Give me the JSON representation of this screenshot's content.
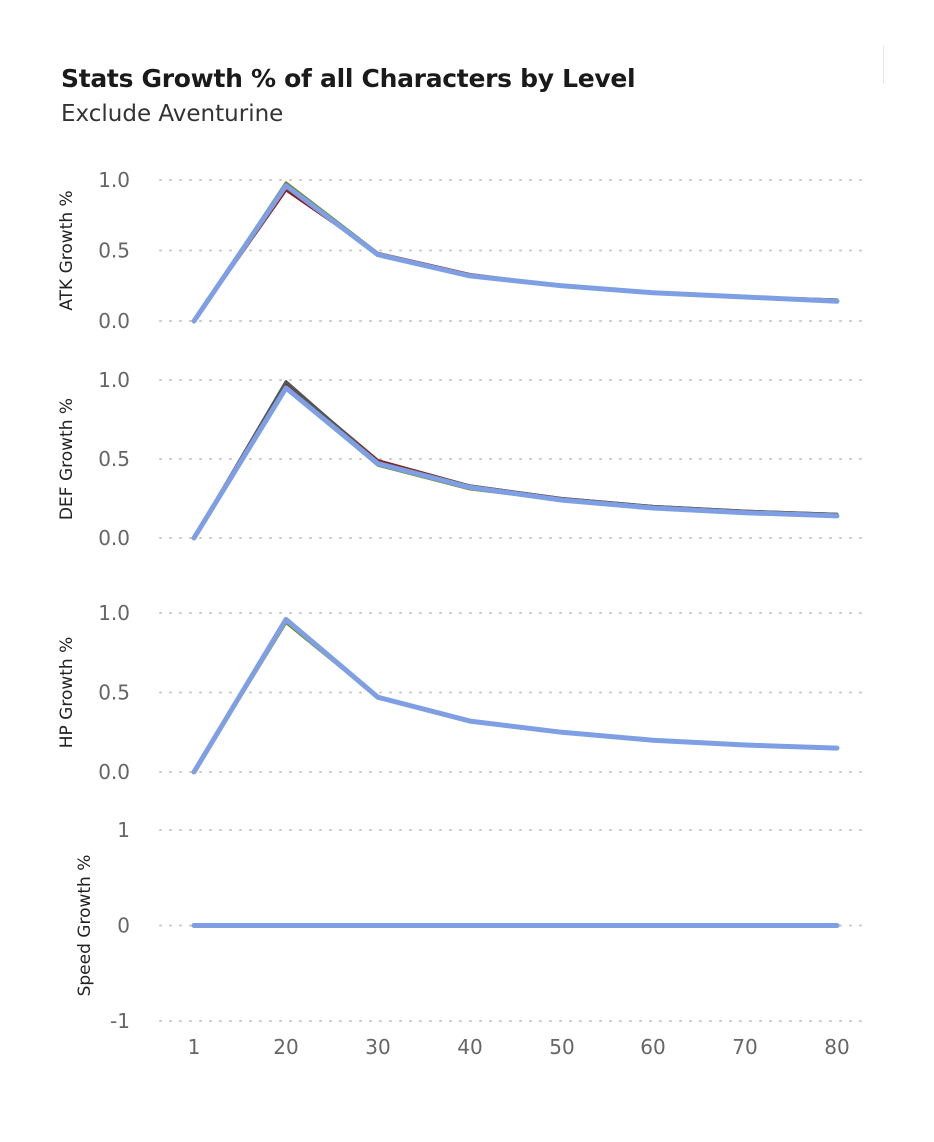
{
  "title": "Stats Growth % of all Characters by Level",
  "subtitle": "Exclude Aventurine",
  "chart_data": {
    "type": "line",
    "x": [
      1,
      20,
      30,
      40,
      50,
      60,
      70,
      80
    ],
    "x_tick_labels": [
      "1",
      "20",
      "30",
      "40",
      "50",
      "60",
      "70",
      "80"
    ],
    "grid": true,
    "panels": [
      {
        "ylabel": "ATK Growth %",
        "ylim": [
          0,
          1
        ],
        "y_ticks": [
          0,
          0.5,
          1
        ],
        "y_tick_labels": [
          "0.0",
          "0.5",
          "1.0"
        ],
        "series": [
          {
            "color": "#8b2020",
            "values": [
              0.0,
              0.93,
              0.48,
              0.33,
              0.25,
              0.2,
              0.17,
              0.15
            ]
          },
          {
            "color": "#6b8e23",
            "values": [
              0.0,
              0.98,
              0.48,
              0.32,
              0.25,
              0.2,
              0.17,
              0.15
            ]
          },
          {
            "color": "#555555",
            "values": [
              0.0,
              0.97,
              0.47,
              0.32,
              0.25,
              0.2,
              0.17,
              0.14
            ]
          },
          {
            "color": "#7e9fe3",
            "values": [
              0.0,
              0.96,
              0.47,
              0.32,
              0.25,
              0.2,
              0.17,
              0.14
            ]
          }
        ]
      },
      {
        "ylabel": "DEF Growth %",
        "ylim": [
          0,
          1
        ],
        "y_ticks": [
          0,
          0.5,
          1
        ],
        "y_tick_labels": [
          "0.0",
          "0.5",
          "1.0"
        ],
        "series": [
          {
            "color": "#8b2020",
            "values": [
              0.0,
              0.98,
              0.49,
              0.33,
              0.25,
              0.2,
              0.17,
              0.15
            ]
          },
          {
            "color": "#6b8e23",
            "values": [
              0.0,
              0.95,
              0.46,
              0.31,
              0.24,
              0.19,
              0.16,
              0.14
            ]
          },
          {
            "color": "#555555",
            "values": [
              0.0,
              0.99,
              0.48,
              0.33,
              0.25,
              0.2,
              0.17,
              0.15
            ]
          },
          {
            "color": "#7e9fe3",
            "values": [
              0.0,
              0.95,
              0.47,
              0.32,
              0.24,
              0.19,
              0.16,
              0.14
            ]
          }
        ]
      },
      {
        "ylabel": "HP Growth %",
        "ylim": [
          0,
          1
        ],
        "y_ticks": [
          0,
          0.5,
          1
        ],
        "y_tick_labels": [
          "0.0",
          "0.5",
          "1.0"
        ],
        "series": [
          {
            "color": "#6b8e23",
            "values": [
              0.0,
              0.94,
              0.47,
              0.32,
              0.25,
              0.2,
              0.17,
              0.15
            ]
          },
          {
            "color": "#555555",
            "values": [
              0.0,
              0.96,
              0.47,
              0.32,
              0.25,
              0.2,
              0.17,
              0.15
            ]
          },
          {
            "color": "#7e9fe3",
            "values": [
              0.0,
              0.96,
              0.47,
              0.32,
              0.25,
              0.2,
              0.17,
              0.15
            ]
          }
        ]
      },
      {
        "ylabel": "Speed Growth %",
        "ylim": [
          -1,
          1
        ],
        "y_ticks": [
          -1,
          0,
          1
        ],
        "y_tick_labels": [
          "-1",
          "0",
          "1"
        ],
        "series": [
          {
            "color": "#7e9fe3",
            "values": [
              0,
              0,
              0,
              0,
              0,
              0,
              0,
              0
            ]
          }
        ]
      }
    ]
  }
}
